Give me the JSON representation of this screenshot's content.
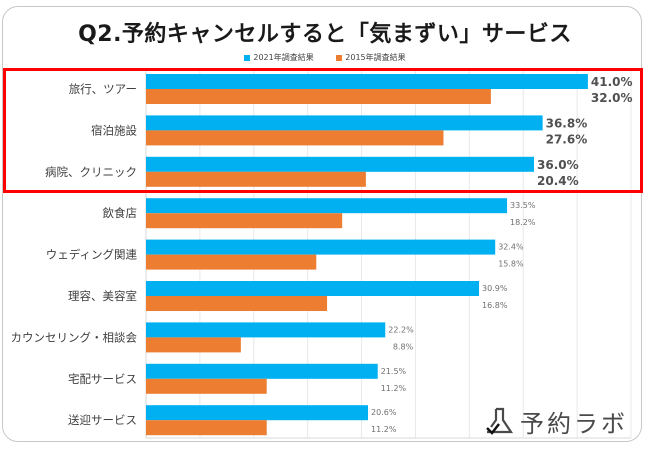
{
  "chart_data": {
    "type": "bar",
    "orientation": "horizontal",
    "title": "Q2.予約キャンセルすると「気まずい」サービス",
    "xlabel": "",
    "ylabel": "",
    "xlim": [
      0,
      45
    ],
    "grid": true,
    "gridline_step": 5,
    "legend_position": "top",
    "categories": [
      "旅行、ツアー",
      "宿泊施設",
      "病院、クリニック",
      "飲食店",
      "ウェディング関連",
      "理容、美容室",
      "カウンセリング・相談会",
      "宅配サービス",
      "送迎サービス"
    ],
    "series": [
      {
        "name": "2021年調査結果",
        "color": "#00b0f0",
        "values": [
          41.0,
          36.8,
          36.0,
          33.5,
          32.4,
          30.9,
          22.2,
          21.5,
          20.6
        ]
      },
      {
        "name": "2015年調査結果",
        "color": "#ed7d31",
        "values": [
          32.0,
          27.6,
          20.4,
          18.2,
          15.8,
          16.8,
          8.8,
          11.2,
          11.2
        ]
      }
    ],
    "value_labels_2021": [
      "41.0%",
      "36.8%",
      "36.0%",
      "33.5%",
      "32.4%",
      "30.9%",
      "22.2%",
      "21.5%",
      "20.6%"
    ],
    "value_labels_2015": [
      "32.0%",
      "27.6%",
      "20.4%",
      "18.2%",
      "15.8%",
      "16.8%",
      "8.8%",
      "11.2%",
      "11.2%"
    ],
    "highlighted_categories": [
      "旅行、ツアー",
      "宿泊施設",
      "病院、クリニック"
    ],
    "highlight_color": "#ff0000"
  },
  "legend": {
    "items": [
      {
        "label": "2021年調査結果",
        "color": "#00b0f0"
      },
      {
        "label": "2015年調査結果",
        "color": "#ed7d31"
      }
    ]
  },
  "logo": {
    "text": "予約ラボ"
  }
}
